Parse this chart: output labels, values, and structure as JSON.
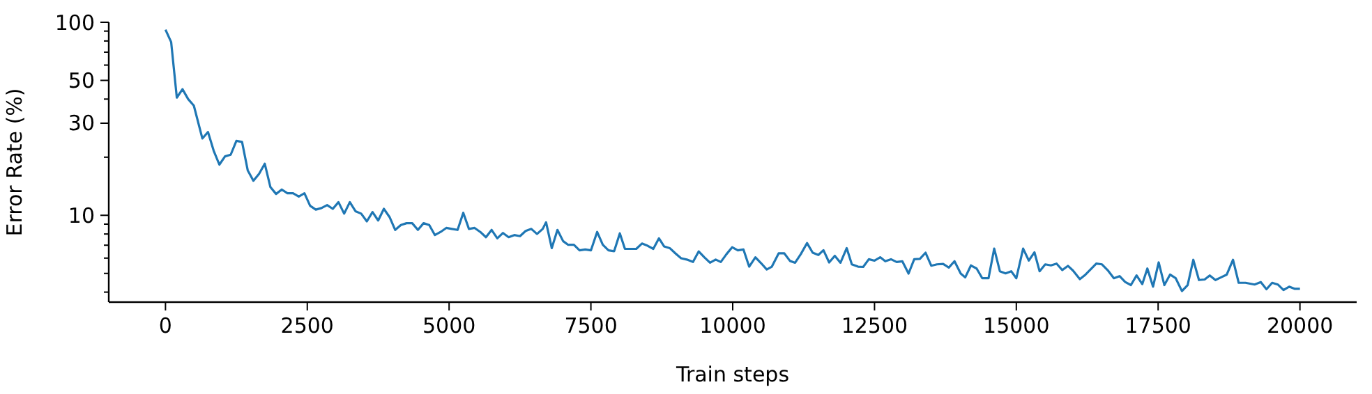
{
  "chart_data": {
    "type": "line",
    "xlabel": "Train steps",
    "ylabel": "Error Rate (%)",
    "log": "y",
    "xlim": [
      -1000,
      21000
    ],
    "xticks": [
      0,
      2500,
      5000,
      7500,
      10000,
      12500,
      15000,
      17500,
      20000
    ],
    "ylim": [
      3.55,
      100
    ],
    "yticks": [
      {
        "value": 4,
        "label": null
      },
      {
        "value": 5,
        "label": null
      },
      {
        "value": 6,
        "label": null
      },
      {
        "value": 7,
        "label": null
      },
      {
        "value": 8,
        "label": null
      },
      {
        "value": 9,
        "label": null
      },
      10,
      {
        "value": 20,
        "label": null
      },
      30,
      {
        "value": 40,
        "label": null
      },
      50,
      {
        "value": 60,
        "label": null
      },
      {
        "value": 70,
        "label": null
      },
      {
        "value": 80,
        "label": null
      },
      {
        "value": 90,
        "label": null
      },
      100
    ],
    "x": [
      0,
      100,
      200,
      300,
      400,
      500,
      650,
      750,
      850,
      950,
      1050,
      1150,
      1250,
      1350,
      1450,
      1550,
      1650,
      1750,
      1850,
      1950,
      2050,
      2150,
      2250,
      2350,
      2450,
      2550,
      2650,
      2750,
      2850,
      2950,
      3050,
      3150,
      3250,
      3350,
      3450,
      3550,
      3650,
      3750,
      3850,
      3950,
      4050,
      4150,
      4250,
      4350,
      4450,
      4550,
      4650,
      4750,
      4850,
      4950,
      5050,
      5150,
      5250,
      5350,
      5450,
      5550,
      5650,
      5750,
      5850,
      5950,
      6050,
      6150,
      6250,
      6350,
      6450,
      6550,
      6650,
      6710,
      6810,
      6910,
      7010,
      7100,
      7200,
      7300,
      7400,
      7500,
      7610,
      7710,
      7810,
      7910,
      8010,
      8100,
      8200,
      8300,
      8400,
      8500,
      8600,
      8700,
      8790,
      8890,
      8990,
      9090,
      9190,
      9300,
      9400,
      9500,
      9600,
      9700,
      9790,
      9890,
      9990,
      10090,
      10190,
      10290,
      10400,
      10500,
      10600,
      10690,
      10810,
      10910,
      11010,
      11100,
      11200,
      11310,
      11410,
      11510,
      11600,
      11700,
      11800,
      11900,
      12010,
      12100,
      12210,
      12300,
      12400,
      12500,
      12600,
      12690,
      12790,
      12890,
      12990,
      13100,
      13200,
      13300,
      13400,
      13500,
      13600,
      13710,
      13810,
      13910,
      14020,
      14100,
      14200,
      14300,
      14400,
      14510,
      14610,
      14710,
      14810,
      14910,
      15000,
      15120,
      15220,
      15320,
      15410,
      15510,
      15610,
      15710,
      15810,
      15910,
      16000,
      16120,
      16220,
      16320,
      16410,
      16510,
      16610,
      16720,
      16820,
      16920,
      17020,
      17120,
      17220,
      17310,
      17410,
      17510,
      17610,
      17710,
      17810,
      17920,
      18020,
      18120,
      18220,
      18320,
      18410,
      18510,
      18610,
      18710,
      18820,
      18920,
      19040,
      19200,
      19310,
      19410,
      19510,
      19610,
      19710,
      19810,
      19910,
      20000
    ],
    "series": [
      {
        "color": "#1f77b4",
        "values": [
          91.6,
          79,
          40.7,
          45,
          40,
          37,
          25,
          27,
          21.6,
          18.3,
          20.2,
          20.6,
          24.3,
          24,
          17.1,
          15.1,
          16.4,
          18.5,
          14,
          12.9,
          13.6,
          13,
          13,
          12.5,
          13,
          11.2,
          10.7,
          10.9,
          11.3,
          10.8,
          11.7,
          10.2,
          11.7,
          10.5,
          10.2,
          9.3,
          10.4,
          9.4,
          10.8,
          9.8,
          8.4,
          8.9,
          9.1,
          9.1,
          8.4,
          9.1,
          8.9,
          7.9,
          8.2,
          8.6,
          8.5,
          8.4,
          10.3,
          8.5,
          8.6,
          8.2,
          7.7,
          8.4,
          7.6,
          8.1,
          7.7,
          7.9,
          7.8,
          8.3,
          8.5,
          8,
          8.5,
          9.2,
          6.76,
          8.4,
          7.35,
          7.03,
          7.03,
          6.58,
          6.65,
          6.58,
          8.2,
          7.03,
          6.58,
          6.52,
          8.06,
          6.7,
          6.7,
          6.7,
          7.14,
          6.95,
          6.7,
          7.6,
          6.9,
          6.76,
          6.35,
          5.99,
          5.9,
          5.73,
          6.5,
          6.06,
          5.68,
          5.9,
          5.73,
          6.29,
          6.83,
          6.58,
          6.65,
          5.42,
          6.06,
          5.65,
          5.24,
          5.42,
          6.35,
          6.35,
          5.8,
          5.68,
          6.29,
          7.18,
          6.4,
          6.23,
          6.6,
          5.7,
          6.17,
          5.68,
          6.76,
          5.57,
          5.42,
          5.4,
          5.92,
          5.82,
          6.06,
          5.78,
          5.92,
          5.73,
          5.78,
          4.99,
          5.92,
          5.95,
          6.4,
          5.48,
          5.57,
          5.6,
          5.36,
          5.78,
          4.99,
          4.77,
          5.5,
          5.3,
          4.72,
          4.72,
          6.72,
          5.13,
          5,
          5.13,
          4.72,
          6.72,
          5.83,
          6.43,
          5.13,
          5.57,
          5.5,
          5.62,
          5.2,
          5.47,
          5.17,
          4.67,
          4.93,
          5.28,
          5.62,
          5.57,
          5.2,
          4.72,
          4.84,
          4.51,
          4.35,
          4.88,
          4.4,
          5.3,
          4.27,
          5.7,
          4.35,
          4.93,
          4.72,
          4.05,
          4.35,
          5.88,
          4.62,
          4.65,
          4.88,
          4.62,
          4.77,
          4.93,
          5.88,
          4.47,
          4.47,
          4.38,
          4.51,
          4.14,
          4.47,
          4.38,
          4.1,
          4.27,
          4.16,
          4.16
        ]
      }
    ]
  }
}
